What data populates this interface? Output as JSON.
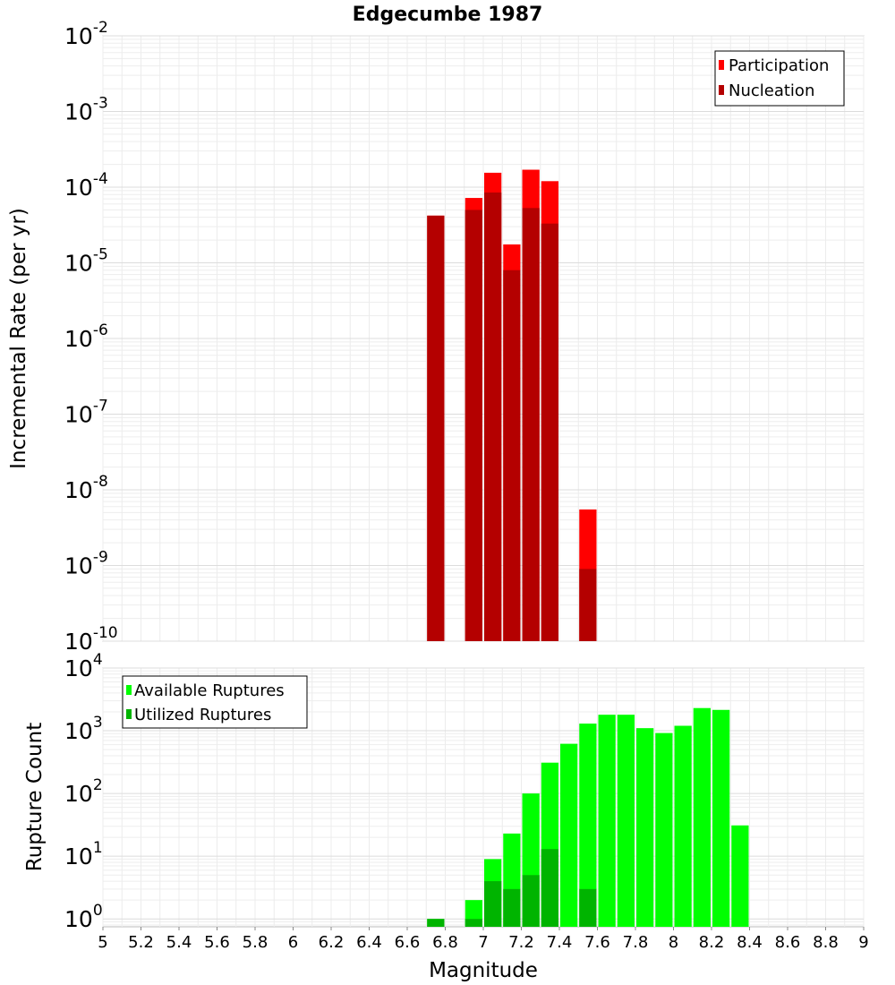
{
  "chart_data": [
    {
      "type": "bar",
      "title": "Edgecumbe 1987",
      "xlabel": "",
      "ylabel": "Incremental Rate (per yr)",
      "yscale": "log",
      "xlim": [
        5,
        9
      ],
      "ylim": [
        1e-10,
        0.01
      ],
      "y_tick_exponents": [
        -10,
        -9,
        -8,
        -7,
        -6,
        -5,
        -4,
        -3,
        -2
      ],
      "legend_position": "top-right",
      "series": [
        {
          "name": "Participation",
          "color": "#ff0000",
          "x": [
            6.75,
            6.95,
            7.05,
            7.15,
            7.25,
            7.35,
            7.55
          ],
          "values": [
            4.2e-05,
            7.2e-05,
            0.000155,
            1.75e-05,
            0.00017,
            0.00012,
            5.5e-09
          ]
        },
        {
          "name": "Nucleation",
          "color": "#b40000",
          "x": [
            6.75,
            6.95,
            7.05,
            7.15,
            7.25,
            7.35,
            7.55
          ],
          "values": [
            4.2e-05,
            5e-05,
            8.5e-05,
            8e-06,
            5.3e-05,
            3.3e-05,
            9e-10
          ]
        }
      ]
    },
    {
      "type": "bar",
      "title": "",
      "xlabel": "Magnitude",
      "ylabel": "Rupture Count",
      "yscale": "log",
      "xlim": [
        5,
        9
      ],
      "ylim": [
        0.75,
        10000
      ],
      "y_tick_exponents": [
        0,
        1,
        2,
        3,
        4
      ],
      "x_ticks": [
        "5",
        "5.2",
        "5.4",
        "5.6",
        "5.8",
        "6",
        "6.2",
        "6.4",
        "6.6",
        "6.8",
        "7",
        "7.2",
        "7.4",
        "7.6",
        "7.8",
        "8",
        "8.2",
        "8.4",
        "8.6",
        "8.8",
        "9"
      ],
      "legend_position": "top-left",
      "series": [
        {
          "name": "Available Ruptures",
          "color": "#00ff00",
          "x": [
            6.75,
            6.95,
            7.05,
            7.15,
            7.25,
            7.35,
            7.45,
            7.55,
            7.65,
            7.75,
            7.85,
            7.95,
            8.05,
            8.15,
            8.25,
            8.35
          ],
          "values": [
            1,
            2,
            9,
            23,
            100,
            310,
            620,
            1300,
            1800,
            1800,
            1100,
            920,
            1200,
            2300,
            2150,
            31
          ]
        },
        {
          "name": "Utilized Ruptures",
          "color": "#00b400",
          "x": [
            6.75,
            6.95,
            7.05,
            7.15,
            7.25,
            7.35,
            7.55
          ],
          "values": [
            1,
            1,
            4,
            3,
            5,
            13,
            3
          ]
        }
      ]
    }
  ]
}
